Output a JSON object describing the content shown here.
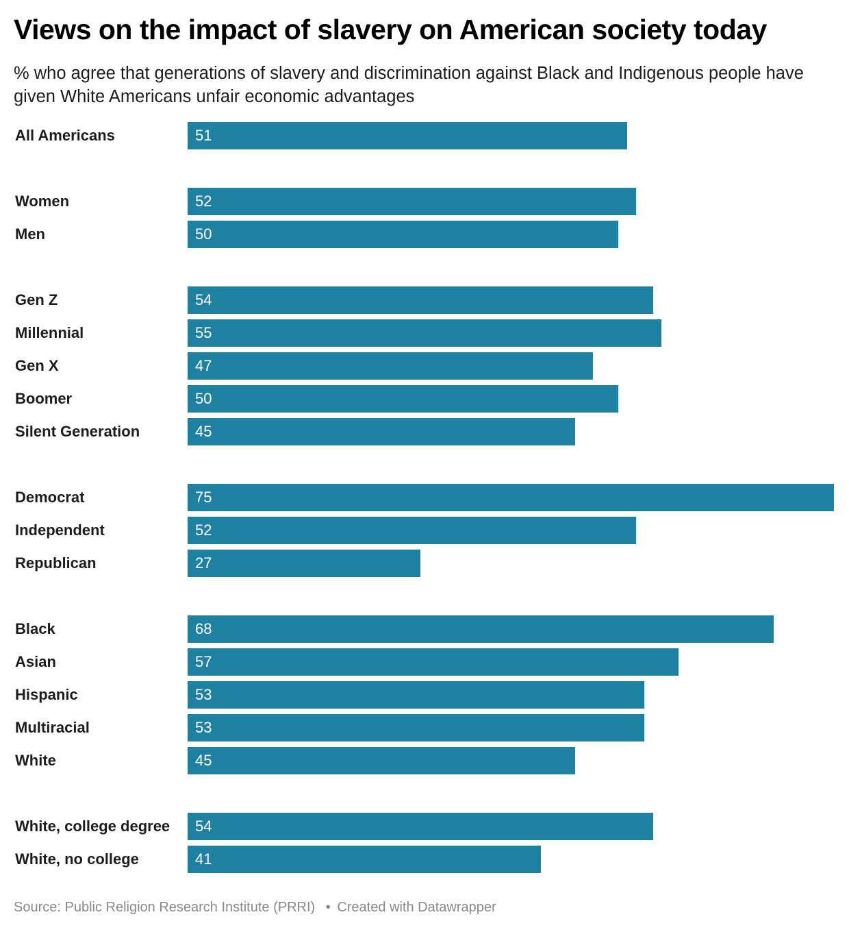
{
  "chart_data": {
    "type": "bar",
    "orientation": "horizontal",
    "title": "Views on the impact of slavery on American society today",
    "subtitle": "% who agree that generations of slavery and discrimination against Black and Indigenous people have given White Americans unfair economic advantages",
    "xlabel": "",
    "ylabel": "",
    "xlim": [
      0,
      75
    ],
    "grid": false,
    "bar_color": "#1f81a1",
    "value_label_color": "#ffffff",
    "groups": [
      {
        "categories": [
          "All Americans"
        ],
        "values": [
          51
        ]
      },
      {
        "categories": [
          "Women",
          "Men"
        ],
        "values": [
          52,
          50
        ]
      },
      {
        "categories": [
          "Gen Z",
          "Millennial",
          "Gen X",
          "Boomer",
          "Silent Generation"
        ],
        "values": [
          54,
          55,
          47,
          50,
          45
        ]
      },
      {
        "categories": [
          "Democrat",
          "Independent",
          "Republican"
        ],
        "values": [
          75,
          52,
          27
        ]
      },
      {
        "categories": [
          "Black",
          "Asian",
          "Hispanic",
          "Multiracial",
          "White"
        ],
        "values": [
          68,
          57,
          53,
          53,
          45
        ]
      },
      {
        "categories": [
          "White, college degree",
          "White, no college"
        ],
        "values": [
          54,
          41
        ]
      }
    ],
    "categories": [
      "All Americans",
      "Women",
      "Men",
      "Gen Z",
      "Millennial",
      "Gen X",
      "Boomer",
      "Silent Generation",
      "Democrat",
      "Independent",
      "Republican",
      "Black",
      "Asian",
      "Hispanic",
      "Multiracial",
      "White",
      "White, college degree",
      "White, no college"
    ],
    "values": [
      51,
      52,
      50,
      54,
      55,
      47,
      50,
      45,
      75,
      52,
      27,
      68,
      57,
      53,
      53,
      45,
      54,
      41
    ]
  },
  "footer": {
    "source": "Source: Public Religion Research Institute (PRRI)",
    "separator": "•",
    "credit": "Created with Datawrapper"
  }
}
